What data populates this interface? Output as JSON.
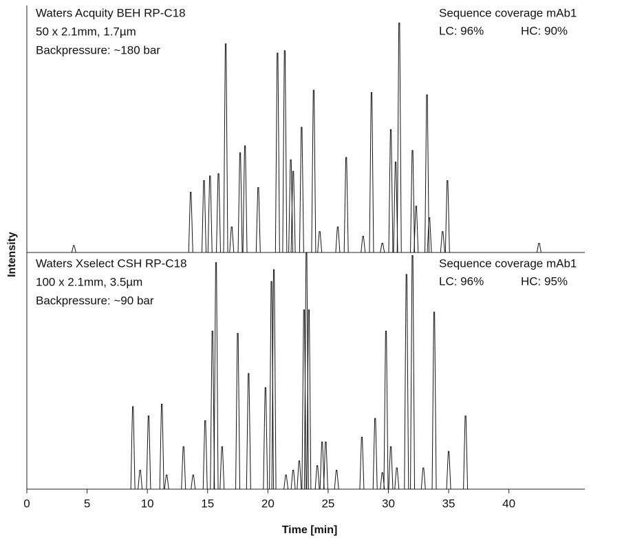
{
  "chart_data": [
    {
      "type": "peak",
      "ylabel": "Intensity",
      "annotations": [
        "Waters Acquity BEH RP-C18",
        "50 x 2.1mm, 1.7µm",
        "Backpressure: ~180 bar"
      ],
      "coverage_title": "Sequence coverage mAb1",
      "coverage_lc": "LC: 96%",
      "coverage_hc": "HC: 90%",
      "xlim": [
        0,
        46.3
      ],
      "ylim": [
        0,
        100
      ],
      "color": "#111111",
      "x": [
        3.9,
        13.6,
        14.7,
        15.2,
        15.9,
        16.5,
        17.0,
        17.7,
        18.1,
        19.2,
        20.8,
        21.4,
        21.9,
        22.1,
        22.8,
        23.8,
        24.3,
        25.8,
        26.5,
        27.9,
        28.6,
        29.5,
        30.2,
        30.6,
        30.9,
        32.0,
        32.3,
        33.2,
        33.4,
        34.5,
        34.9,
        42.5
      ],
      "values": [
        3,
        26,
        31,
        33,
        34,
        90,
        11,
        43,
        46,
        28,
        86,
        87,
        40,
        35,
        54,
        70,
        9,
        11,
        41,
        7,
        69,
        4,
        53,
        39,
        99,
        44,
        20,
        68,
        15,
        9,
        31,
        4
      ]
    },
    {
      "type": "peak",
      "xlabel": "Time [min]",
      "annotations": [
        "Waters Xselect CSH RP-C18",
        "100 x 2.1mm, 3.5µm",
        "Backpressure: ~90 bar"
      ],
      "coverage_title": "Sequence coverage mAb1",
      "coverage_lc": "LC: 96%",
      "coverage_hc": "HC: 95%",
      "xlim": [
        0,
        46.3
      ],
      "ylim": [
        0,
        100
      ],
      "xticks": [
        0,
        5,
        10,
        15,
        20,
        25,
        30,
        35,
        40
      ],
      "color": "#111111",
      "x": [
        8.8,
        9.4,
        10.1,
        11.2,
        11.6,
        13.0,
        13.8,
        14.8,
        15.4,
        15.7,
        16.2,
        17.5,
        18.4,
        19.8,
        20.3,
        20.5,
        21.5,
        22.1,
        22.6,
        23.0,
        23.2,
        23.4,
        24.1,
        24.5,
        24.8,
        25.7,
        27.8,
        28.9,
        29.5,
        29.8,
        30.2,
        30.7,
        31.5,
        32.0,
        32.9,
        33.8,
        35.0,
        36.4
      ],
      "values": [
        35,
        8,
        31,
        36,
        6,
        18,
        6,
        29,
        67,
        96,
        18,
        66,
        49,
        43,
        88,
        93,
        6,
        8,
        12,
        76,
        100,
        76,
        10,
        20,
        20,
        8,
        22,
        30,
        7,
        67,
        18,
        9,
        91,
        99,
        9,
        75,
        16,
        31
      ]
    }
  ]
}
